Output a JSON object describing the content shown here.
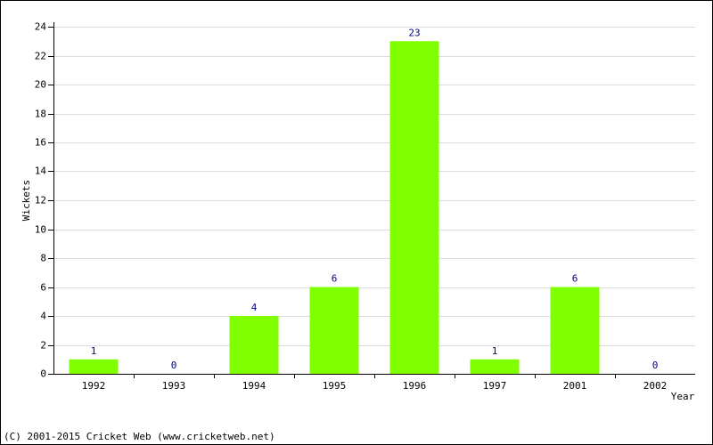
{
  "chart_data": {
    "type": "bar",
    "categories": [
      "1992",
      "1993",
      "1994",
      "1995",
      "1996",
      "1997",
      "2001",
      "2002"
    ],
    "values": [
      1,
      0,
      4,
      6,
      23,
      1,
      6,
      0
    ],
    "color": "#80ff00",
    "x_label": "Year",
    "y_label": "Wickets",
    "ylim": [
      0,
      24
    ],
    "yticks": [
      0,
      2,
      4,
      6,
      8,
      10,
      12,
      14,
      16,
      18,
      20,
      22,
      24
    ],
    "grid": true,
    "footer": "(C) 2001-2015 Cricket Web (www.cricketweb.net)"
  }
}
